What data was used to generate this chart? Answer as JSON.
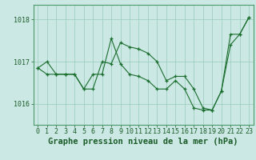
{
  "title": "Graphe pression niveau de la mer (hPa)",
  "background_color": "#cce8e4",
  "grid_color": "#99ccbb",
  "line_color": "#1a6e2e",
  "marker_color": "#1a6e2e",
  "xlim": [
    -0.5,
    23.5
  ],
  "ylim": [
    1015.5,
    1018.35
  ],
  "xticks": [
    0,
    1,
    2,
    3,
    4,
    5,
    6,
    7,
    8,
    9,
    10,
    11,
    12,
    13,
    14,
    15,
    16,
    17,
    18,
    19,
    20,
    21,
    22,
    23
  ],
  "yticks": [
    1016,
    1017,
    1018
  ],
  "series": [
    {
      "x": [
        0,
        1,
        2,
        3,
        4,
        5,
        6,
        7,
        8,
        9,
        10,
        11,
        12,
        13,
        14,
        15,
        16,
        17,
        18,
        19,
        20,
        21,
        22,
        23
      ],
      "y": [
        1016.85,
        1017.0,
        1016.7,
        1016.7,
        1016.7,
        1016.35,
        1016.35,
        1017.0,
        1016.95,
        1017.45,
        1017.35,
        1017.3,
        1017.2,
        1017.0,
        1016.55,
        1016.65,
        1016.65,
        1016.35,
        1015.9,
        1015.85,
        1016.3,
        1017.4,
        1017.65,
        1018.05
      ]
    },
    {
      "x": [
        0,
        1,
        2,
        3,
        4,
        5,
        6,
        7,
        8,
        9,
        10,
        11,
        12,
        13,
        14,
        15,
        16,
        17,
        18,
        19,
        20,
        21,
        22,
        23
      ],
      "y": [
        1016.85,
        1016.7,
        1016.7,
        1016.7,
        1016.7,
        1016.35,
        1016.7,
        1016.7,
        1017.55,
        1016.95,
        1016.7,
        1016.65,
        1016.55,
        1016.35,
        1016.35,
        1016.55,
        1016.35,
        1015.9,
        1015.85,
        1015.85,
        1016.3,
        1017.65,
        1017.65,
        1018.05
      ]
    }
  ],
  "title_fontsize": 7.5,
  "tick_fontsize": 6.0,
  "tick_color": "#1a5c28",
  "axis_color": "#4a9a6a",
  "title_color": "#1a5c28"
}
